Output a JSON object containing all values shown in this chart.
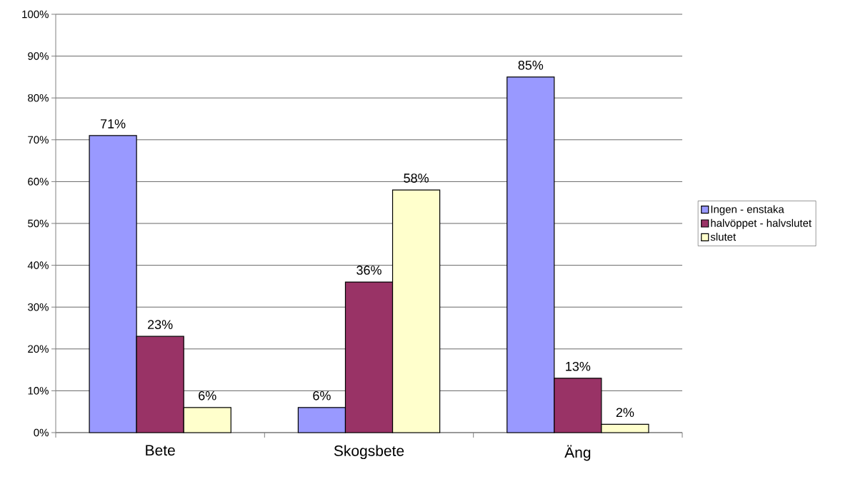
{
  "chart_data": {
    "type": "bar",
    "categories": [
      "Bete",
      "Skogsbete",
      "Äng"
    ],
    "series": [
      {
        "name": "Ingen - enstaka",
        "color": "#9999ff",
        "values": [
          71,
          6,
          85
        ],
        "value_labels": [
          "71%",
          "6%",
          "85%"
        ]
      },
      {
        "name": "halvöppet - halvslutet",
        "color": "#993366",
        "values": [
          23,
          36,
          13
        ],
        "value_labels": [
          "23%",
          "36%",
          "13%"
        ]
      },
      {
        "name": "slutet",
        "color": "#ffffcc",
        "values": [
          6,
          58,
          2
        ],
        "value_labels": [
          "6%",
          "58%",
          "2%"
        ]
      }
    ],
    "ylim": [
      0,
      100
    ],
    "yticks": [
      {
        "value": 0,
        "label": "0%"
      },
      {
        "value": 10,
        "label": "10%"
      },
      {
        "value": 20,
        "label": "20%"
      },
      {
        "value": 30,
        "label": "30%"
      },
      {
        "value": 40,
        "label": "40%"
      },
      {
        "value": 50,
        "label": "50%"
      },
      {
        "value": 60,
        "label": "60%"
      },
      {
        "value": 70,
        "label": "70%"
      },
      {
        "value": 80,
        "label": "80%"
      },
      {
        "value": 90,
        "label": "90%"
      },
      {
        "value": 100,
        "label": "100%"
      }
    ],
    "grid": "y",
    "legend": "right"
  }
}
